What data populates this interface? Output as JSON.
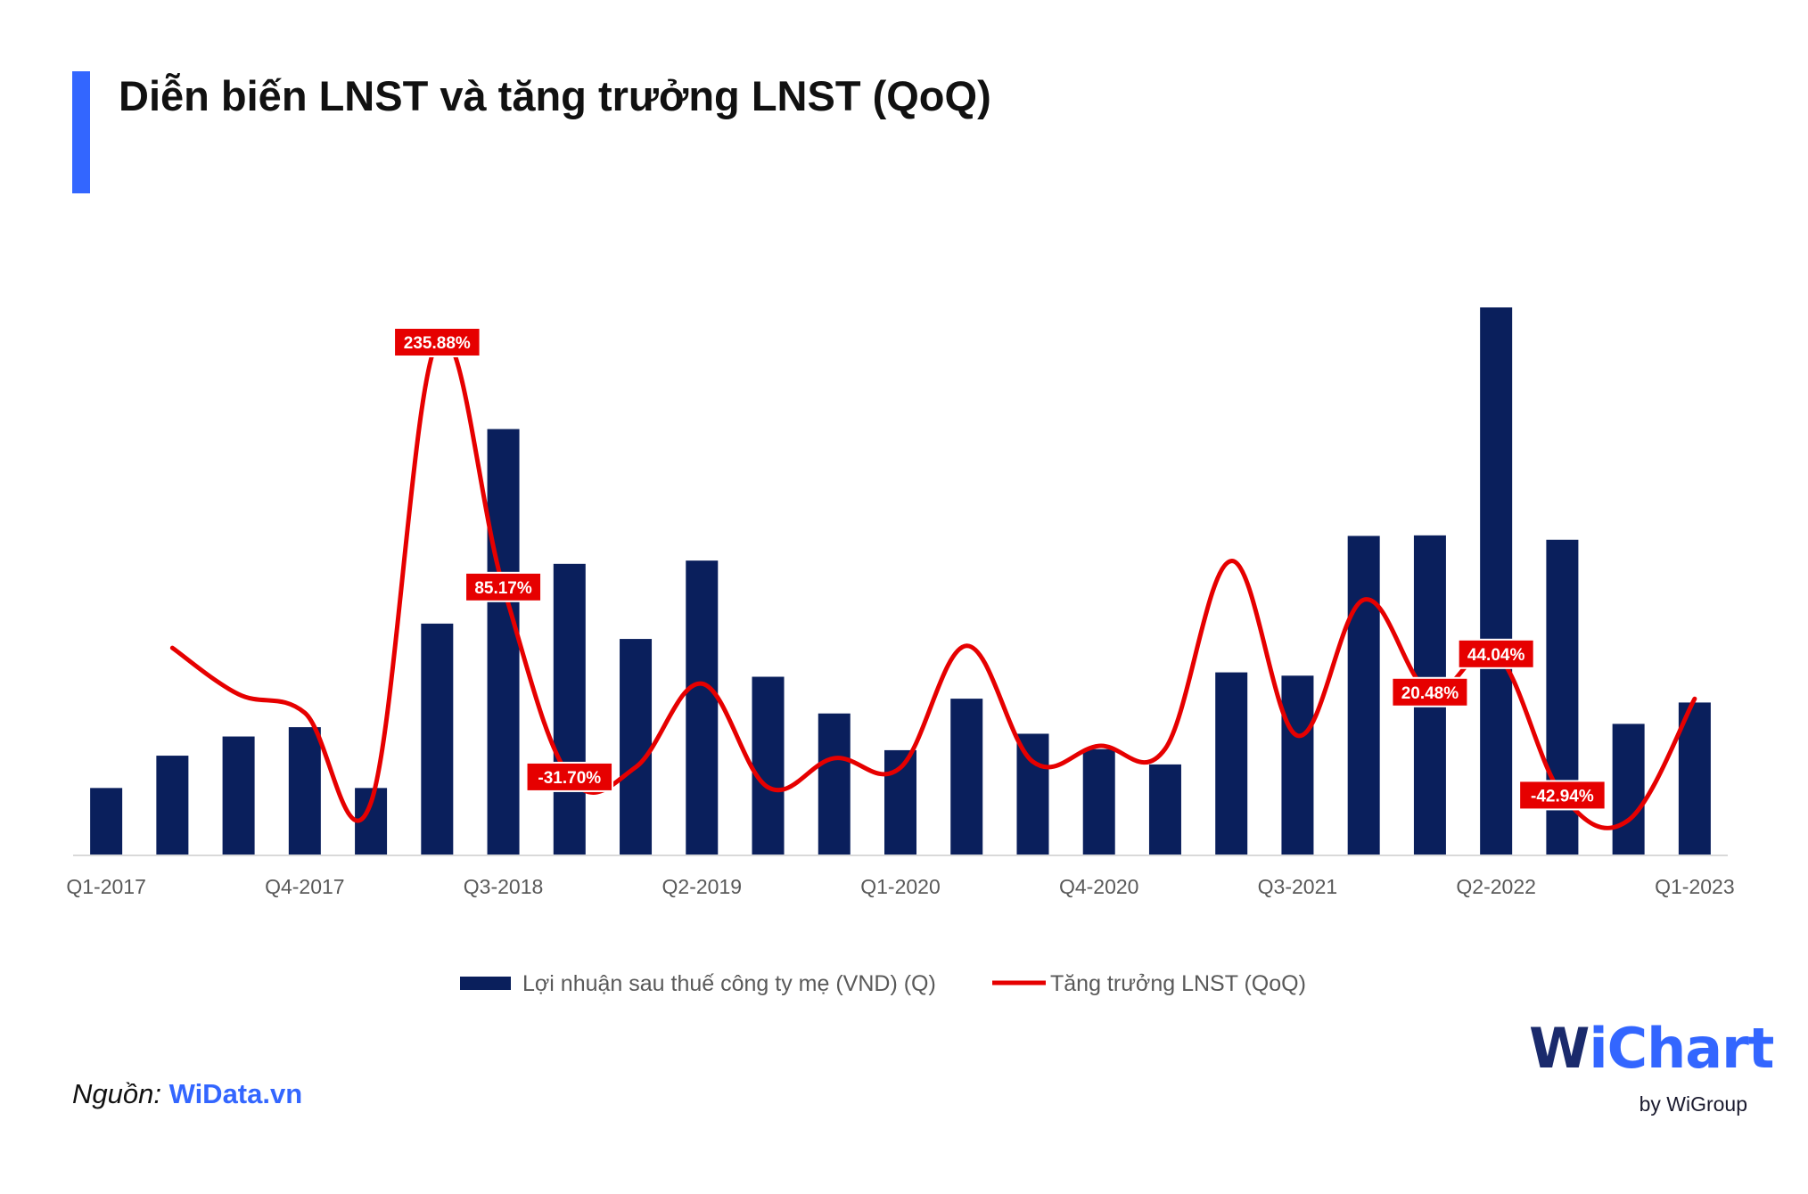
{
  "header": {
    "title": "Diễn biến LNST và tăng trưởng LNST (QoQ)",
    "accent_color": "#3366ff"
  },
  "chart_data": {
    "type": "bar",
    "categories": [
      "Q1-2017",
      "Q2-2017",
      "Q3-2017",
      "Q4-2017",
      "Q1-2018",
      "Q2-2018",
      "Q3-2018",
      "Q4-2018",
      "Q1-2019",
      "Q2-2019",
      "Q3-2019",
      "Q4-2019",
      "Q1-2020",
      "Q2-2020",
      "Q3-2020",
      "Q4-2020",
      "Q1-2021",
      "Q2-2021",
      "Q3-2021",
      "Q4-2021",
      "Q1-2022",
      "Q2-2022",
      "Q3-2022",
      "Q4-2022",
      "Q1-2023"
    ],
    "tick_labels": [
      "Q1-2017",
      "Q4-2017",
      "Q3-2018",
      "Q2-2019",
      "Q1-2020",
      "Q4-2020",
      "Q3-2021",
      "Q2-2022",
      "Q1-2023"
    ],
    "tick_indices": [
      0,
      3,
      6,
      9,
      12,
      15,
      18,
      21,
      24
    ],
    "series": [
      {
        "name": "Lợi nhuận sau thuế công ty mẹ (VND) (Q)",
        "type": "bar",
        "color": "#0a1f5c",
        "values": [
          12.3,
          18.2,
          21.7,
          23.4,
          12.3,
          42.3,
          77.8,
          53.2,
          39.5,
          53.8,
          32.6,
          25.9,
          19.2,
          28.6,
          22.2,
          19.4,
          16.6,
          33.4,
          32.8,
          58.3,
          58.4,
          100,
          57.6,
          24.0,
          27.9
        ]
      },
      {
        "name": "Tăng trưởng LNST (QoQ)",
        "type": "line",
        "color": "#e60000",
        "values": [
          null,
          47.7,
          19.2,
          7.8,
          -47.5,
          235.88,
          85.17,
          -31.7,
          -25.7,
          25.7,
          -38.1,
          -20.2,
          -26.0,
          49.0,
          -22.3,
          -12.6,
          -14.4,
          101.2,
          -6.3,
          77.3,
          20.48,
          44.04,
          -42.94,
          -58.3,
          16.4
        ]
      }
    ],
    "data_labels": [
      {
        "index": 5,
        "text": "235.88%"
      },
      {
        "index": 6,
        "text": "85.17%"
      },
      {
        "index": 7,
        "text": "-31.70%"
      },
      {
        "index": 20,
        "text": "20.48%"
      },
      {
        "index": 21,
        "text": "44.04%"
      },
      {
        "index": 22,
        "text": "-42.94%"
      }
    ],
    "ylim_bar": [
      0,
      100
    ],
    "ylim_line": [
      -80,
      260
    ],
    "legend_position": "bottom",
    "grid": false
  },
  "footer": {
    "source_label": "Nguồn: ",
    "source_link": "WiData.vn"
  },
  "logo": {
    "wordmark": "WiChart",
    "tagline": "by WiGroup",
    "color_primary": "#1a2a6c",
    "color_secondary": "#3366ff"
  }
}
